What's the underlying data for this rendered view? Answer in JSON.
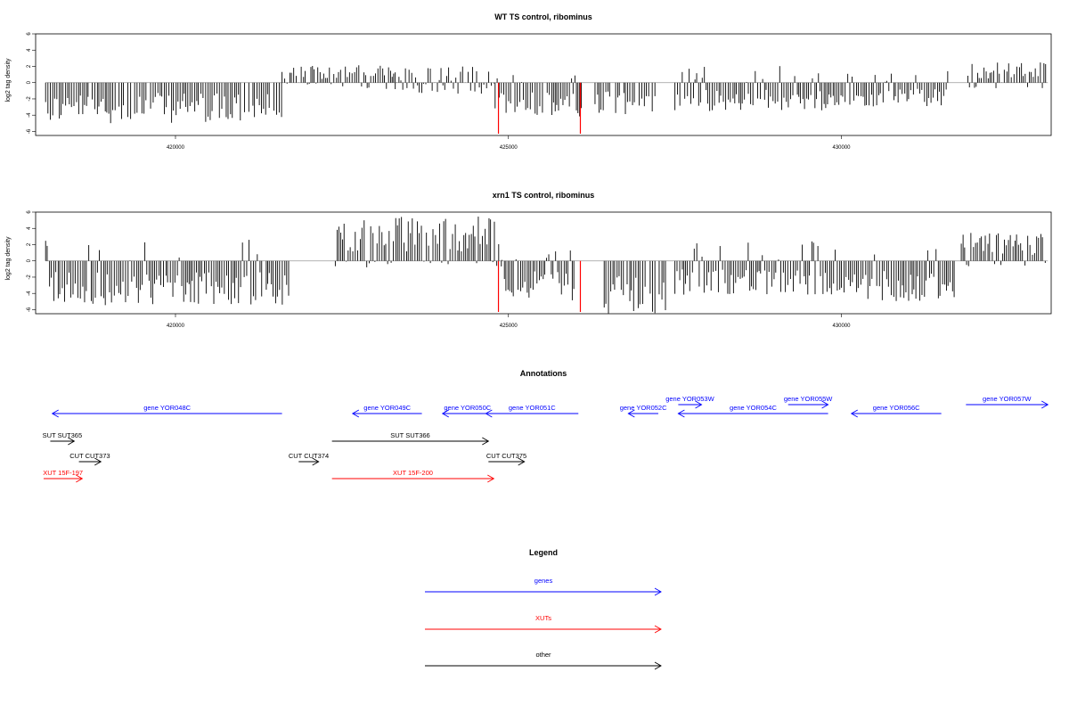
{
  "colors": {
    "gene": "#0000ff",
    "xut": "#ff0000",
    "other": "#000000",
    "highlight": "#ff0000",
    "signal": "#000000",
    "baseline": "#999999"
  },
  "chart_data": [
    {
      "type": "bar",
      "title": "WT TS control, ribominus",
      "ylabel": "log2 tag density",
      "xlim": [
        417900,
        433150
      ],
      "ylim": [
        -6.5,
        6
      ],
      "yticks": [
        -6,
        -4,
        -2,
        0,
        2,
        4,
        6
      ],
      "ytick_labels": [
        "-6",
        "-4",
        "-2",
        "0",
        "2",
        "4",
        "6"
      ],
      "xticks": [
        420000,
        425000,
        430000
      ],
      "xtick_labels": [
        "420000",
        "425000",
        "430000"
      ],
      "grid": false,
      "regions": [
        {
          "start": 418050,
          "end": 421600,
          "profile": "neg",
          "min": -5.0,
          "max": 0
        },
        {
          "start": 421600,
          "end": 423300,
          "profile": "pos",
          "min": 0,
          "max": 2.2
        },
        {
          "start": 423300,
          "end": 424800,
          "profile": "mixed",
          "min": -1.5,
          "max": 2.0
        },
        {
          "start": 424800,
          "end": 426100,
          "profile": "neg",
          "min": -4.5,
          "max": 1.0
        },
        {
          "start": 426300,
          "end": 427200,
          "profile": "neg",
          "min": -4.2,
          "max": 0
        },
        {
          "start": 427500,
          "end": 429900,
          "profile": "neg",
          "min": -3.5,
          "max": 2.2
        },
        {
          "start": 429900,
          "end": 431600,
          "profile": "neg",
          "min": -3.0,
          "max": 1.8
        },
        {
          "start": 431900,
          "end": 433100,
          "profile": "pos",
          "min": 0,
          "max": 2.5
        }
      ],
      "highlights": [
        {
          "x": 424850,
          "y": -6.8
        },
        {
          "x": 426080,
          "y": -6.8
        }
      ]
    },
    {
      "type": "bar",
      "title": "xrn1 TS control, ribominus",
      "ylabel": "log2 tag density",
      "xlim": [
        417900,
        433150
      ],
      "ylim": [
        -6.5,
        6
      ],
      "yticks": [
        -6,
        -4,
        -2,
        0,
        2,
        4,
        6
      ],
      "ytick_labels": [
        "-6",
        "-4",
        "-2",
        "0",
        "2",
        "4",
        "6"
      ],
      "xticks": [
        420000,
        425000,
        430000
      ],
      "xtick_labels": [
        "420000",
        "425000",
        "430000"
      ],
      "grid": false,
      "regions": [
        {
          "start": 418050,
          "end": 421700,
          "profile": "neg",
          "min": -5.5,
          "max": 3.0
        },
        {
          "start": 422400,
          "end": 424900,
          "profile": "pos",
          "min": 0,
          "max": 5.5
        },
        {
          "start": 424900,
          "end": 426000,
          "profile": "neg",
          "min": -5.0,
          "max": 1.5
        },
        {
          "start": 426400,
          "end": 427400,
          "profile": "neg",
          "min": -6.5,
          "max": 0
        },
        {
          "start": 427500,
          "end": 430000,
          "profile": "neg",
          "min": -4.2,
          "max": 2.5
        },
        {
          "start": 430000,
          "end": 431700,
          "profile": "neg",
          "min": -5.0,
          "max": 2.0
        },
        {
          "start": 431800,
          "end": 433100,
          "profile": "pos",
          "min": 0,
          "max": 3.5
        }
      ],
      "highlights": [
        {
          "x": 424850,
          "y": -6.8
        },
        {
          "x": 426080,
          "y": -6.8
        }
      ]
    }
  ],
  "annotations": {
    "title": "Annotations",
    "features": [
      {
        "type": "gene",
        "label": "gene YOR048C",
        "start": 421600,
        "end": 418150,
        "row": 0
      },
      {
        "type": "gene",
        "label": "gene YOR049C",
        "start": 423700,
        "end": 422660,
        "row": 0
      },
      {
        "type": "gene",
        "label": "gene YOR050C",
        "start": 424760,
        "end": 424010,
        "row": 0
      },
      {
        "type": "gene",
        "label": "gene YOR051C",
        "start": 426050,
        "end": 424660,
        "row": 0
      },
      {
        "type": "gene",
        "label": "gene YOR052C",
        "start": 427250,
        "end": 426800,
        "row": 0
      },
      {
        "type": "gene",
        "label": "gene YOR053W",
        "start": 427550,
        "end": 427900,
        "row": 1
      },
      {
        "type": "gene",
        "label": "gene YOR054C",
        "start": 429800,
        "end": 427550,
        "row": 0
      },
      {
        "type": "gene",
        "label": "gene YOR055W",
        "start": 429200,
        "end": 429800,
        "row": 1
      },
      {
        "type": "gene",
        "label": "gene YOR056C",
        "start": 431500,
        "end": 430150,
        "row": 0
      },
      {
        "type": "gene",
        "label": "gene YOR057W",
        "start": 431870,
        "end": 433100,
        "row": 1
      },
      {
        "type": "other",
        "label": "SUT SUT365",
        "start": 418120,
        "end": 418480,
        "row": 2
      },
      {
        "type": "other",
        "label": "SUT SUT366",
        "start": 422350,
        "end": 424700,
        "row": 2
      },
      {
        "type": "other",
        "label": "CUT CUT373",
        "start": 418550,
        "end": 418880,
        "row": 3
      },
      {
        "type": "other",
        "label": "CUT CUT374",
        "start": 421850,
        "end": 422150,
        "row": 3
      },
      {
        "type": "other",
        "label": "CUT CUT375",
        "start": 424700,
        "end": 425240,
        "row": 3
      },
      {
        "type": "xut",
        "label": "XUT 15F-197",
        "start": 418020,
        "end": 418600,
        "row": 4
      },
      {
        "type": "xut",
        "label": "XUT 15F-200",
        "start": 422350,
        "end": 424780,
        "row": 4
      }
    ]
  },
  "legend": {
    "title": "Legend",
    "items": [
      {
        "type": "gene",
        "label": "genes"
      },
      {
        "type": "xut",
        "label": "XUTs"
      },
      {
        "type": "other",
        "label": "other"
      }
    ]
  }
}
